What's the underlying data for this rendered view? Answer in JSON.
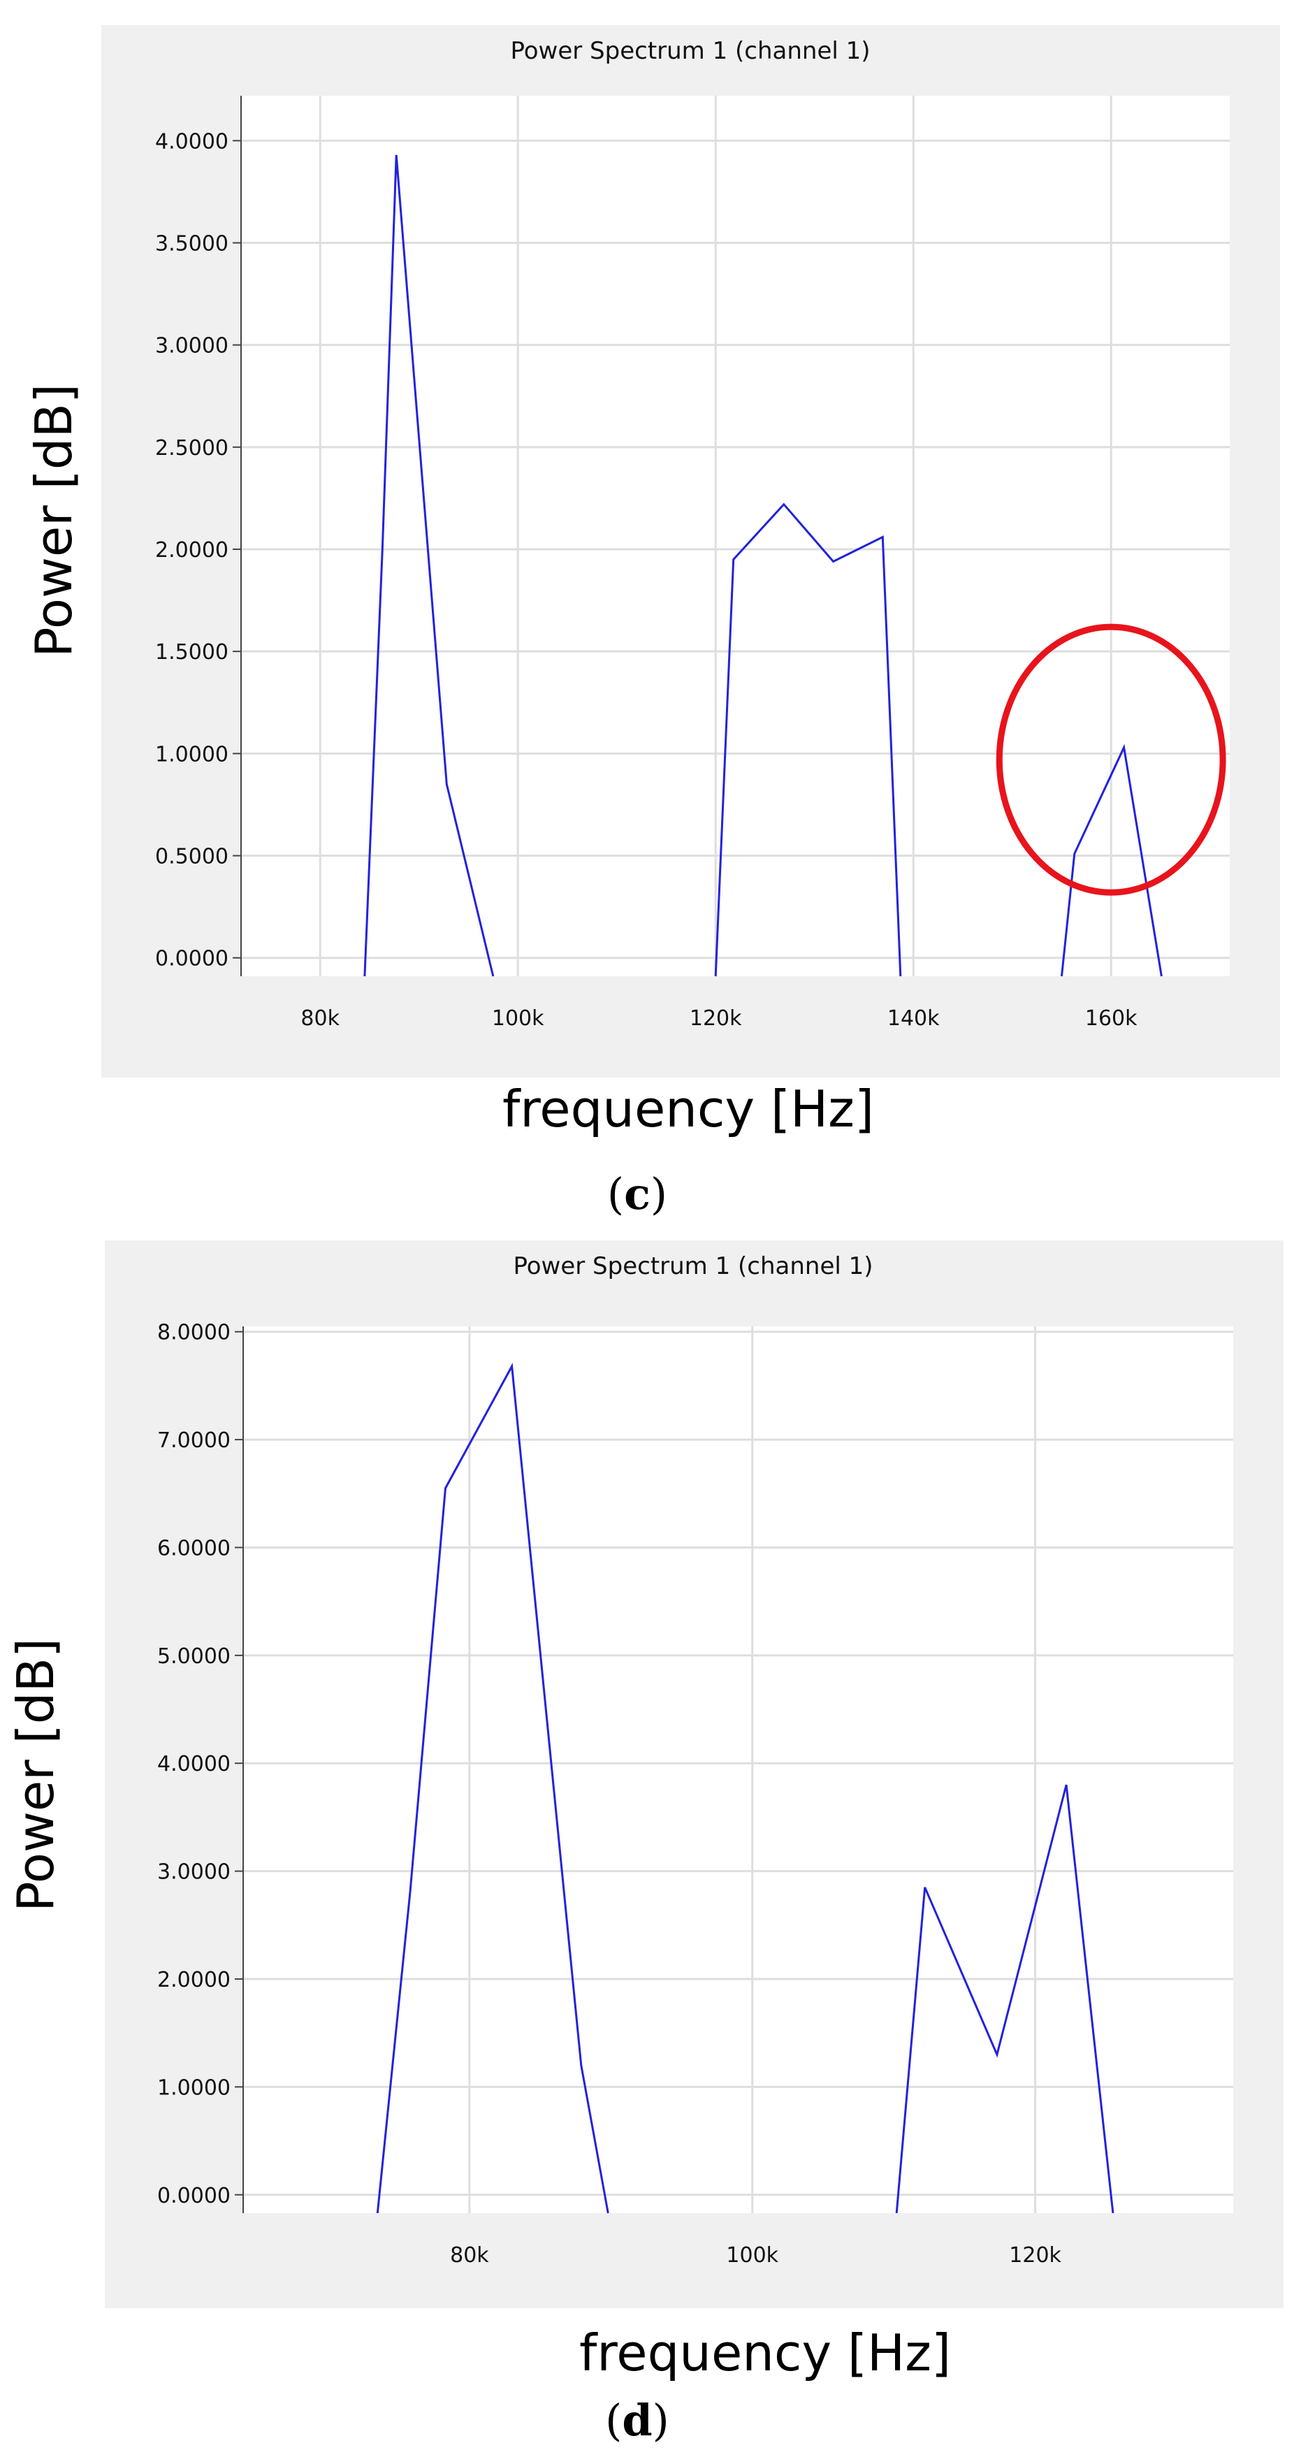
{
  "colors": {
    "line": "#2222dd",
    "highlight": "#e8141c",
    "frame": "#f0f0f0",
    "grid": "#dedede"
  },
  "chart_data": [
    {
      "type": "line",
      "title": "Power Spectrum 1 (channel 1)",
      "xlabel": "frequency [Hz]",
      "ylabel": "Power [dB]",
      "caption_letter": "c",
      "xlim": [
        72000,
        172000
      ],
      "ylim": [
        -0.09,
        4.22
      ],
      "xticks": [
        80000,
        100000,
        120000,
        140000,
        160000
      ],
      "xtick_labels": [
        "80k",
        "100k",
        "120k",
        "140k",
        "160k"
      ],
      "yticks": [
        0,
        0.5,
        1,
        1.5,
        2,
        2.5,
        3,
        3.5,
        4
      ],
      "ytick_labels": [
        "0.0000",
        "0.5000",
        "1.0000",
        "1.5000",
        "2.0000",
        "2.5000",
        "3.0000",
        "3.5000",
        "4.0000"
      ],
      "grid": true,
      "series": [
        {
          "segments": [
            [
              [
                84500,
                -0.09
              ],
              [
                86300,
                2.0
              ],
              [
                87700,
                3.93
              ],
              [
                92800,
                0.85
              ],
              [
                97500,
                -0.09
              ]
            ],
            [
              [
                120000,
                -0.09
              ],
              [
                121800,
                1.95
              ],
              [
                126900,
                2.22
              ],
              [
                131900,
                1.94
              ],
              [
                136900,
                2.06
              ],
              [
                138700,
                -0.09
              ]
            ],
            [
              [
                155000,
                -0.09
              ],
              [
                156300,
                0.51
              ],
              [
                161300,
                1.03
              ],
              [
                165100,
                -0.09
              ]
            ]
          ]
        }
      ],
      "highlight": {
        "shape": "circle",
        "center": [
          160000,
          0.97
        ],
        "radius_x": 11300,
        "radius_y": 0.65
      }
    },
    {
      "type": "line",
      "title": "Power Spectrum 1 (channel 1)",
      "xlabel": "frequency [Hz]",
      "ylabel": "Power [dB]",
      "caption_letter": "d",
      "xlim": [
        64000,
        134000
      ],
      "ylim": [
        -0.17,
        8.05
      ],
      "xticks": [
        80000,
        100000,
        120000
      ],
      "xtick_labels": [
        "80k",
        "100k",
        "120k"
      ],
      "yticks": [
        0,
        1,
        2,
        3,
        4,
        5,
        6,
        7,
        8
      ],
      "ytick_labels": [
        "0.0000",
        "1.0000",
        "2.0000",
        "3.0000",
        "4.0000",
        "5.0000",
        "6.0000",
        "7.0000",
        "8.0000"
      ],
      "grid": true,
      "series": [
        {
          "segments": [
            [
              [
                73500,
                -0.17
              ],
              [
                75800,
                2.8
              ],
              [
                78300,
                6.55
              ],
              [
                83000,
                7.68
              ],
              [
                87900,
                1.2
              ],
              [
                89800,
                -0.17
              ]
            ],
            [
              [
                110200,
                -0.17
              ],
              [
                112200,
                2.85
              ],
              [
                117300,
                1.3
              ],
              [
                122200,
                3.8
              ],
              [
                125500,
                -0.17
              ]
            ]
          ]
        }
      ]
    }
  ]
}
